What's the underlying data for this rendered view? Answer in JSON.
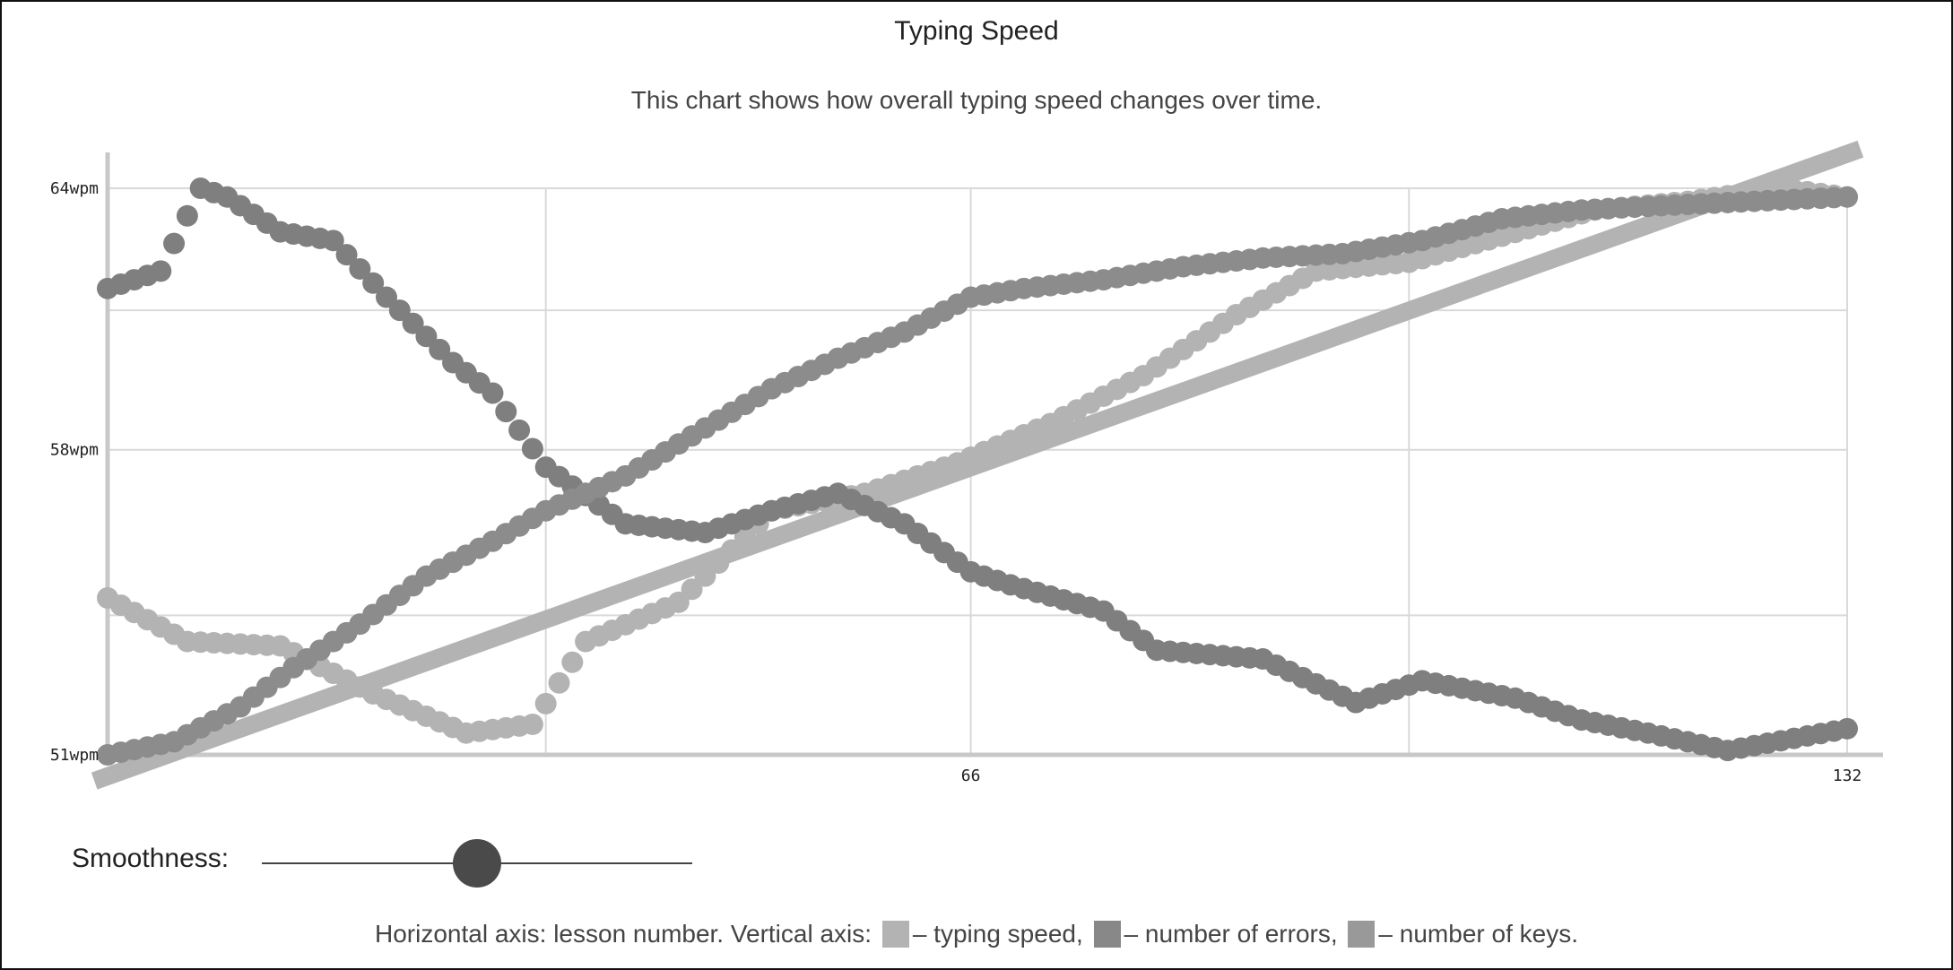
{
  "title": "Typing Speed",
  "subtitle": "This chart shows how overall typing speed changes over time.",
  "smoothness": {
    "label": "Smoothness:",
    "value": 0.5
  },
  "legend": {
    "prefix": "Horizontal axis: lesson number. Vertical axis:",
    "items": [
      {
        "text": "– typing speed,",
        "color": "#b3b3b3"
      },
      {
        "text": "– number of errors,",
        "color": "#888888"
      },
      {
        "text": "– number of keys.",
        "color": "#999999"
      }
    ]
  },
  "chart_data": {
    "type": "scatter",
    "title": "Typing Speed",
    "xlabel": "lesson number",
    "ylabel": "",
    "xlim": [
      1,
      132
    ],
    "ylim": [
      51,
      64
    ],
    "x_ticks": [
      {
        "value": 66,
        "label": "66"
      },
      {
        "value": 132,
        "label": "132"
      }
    ],
    "y_ticks": [
      {
        "value": 51,
        "label": "51wpm"
      },
      {
        "value": 58,
        "label": "58wpm"
      },
      {
        "value": 64,
        "label": "64wpm"
      }
    ],
    "grid": true,
    "series": [
      {
        "name": "typing speed",
        "color": "#b3b3b3",
        "x": [
          1,
          7,
          14,
          21,
          28,
          33,
          37,
          44,
          51,
          58,
          65,
          72,
          79,
          86,
          92,
          99,
          106,
          113,
          120,
          127,
          132
        ],
        "y": [
          54.6,
          53.6,
          53.5,
          52.4,
          51.5,
          51.7,
          53.6,
          54.5,
          56.6,
          57.0,
          57.7,
          58.6,
          59.7,
          61.1,
          62.1,
          62.3,
          62.9,
          63.5,
          63.7,
          64.0,
          63.8
        ]
      },
      {
        "name": "number of errors",
        "color": "#7f7f7f",
        "x": [
          1,
          5,
          8,
          10,
          14,
          18,
          22,
          27,
          30,
          34,
          40,
          46,
          51,
          56,
          61,
          66,
          69,
          76,
          80,
          88,
          95,
          100,
          107,
          112,
          117,
          123,
          132
        ],
        "y": [
          61.7,
          62.1,
          64.0,
          63.8,
          63.0,
          62.8,
          61.5,
          60.0,
          59.3,
          57.6,
          56.3,
          56.1,
          56.6,
          57.0,
          56.3,
          55.2,
          54.9,
          54.3,
          53.4,
          53.2,
          52.2,
          52.7,
          52.3,
          51.8,
          51.5,
          51.1,
          51.6
        ]
      },
      {
        "name": "number of keys",
        "color": "#8c8c8c",
        "x": [
          1,
          6,
          11,
          15,
          20,
          25,
          30,
          34,
          40,
          46,
          51,
          56,
          61,
          66,
          70,
          76,
          82,
          88,
          94,
          100,
          106,
          112,
          118,
          125,
          132
        ],
        "y": [
          51.0,
          51.3,
          52.1,
          53.0,
          54.0,
          55.1,
          55.9,
          56.6,
          57.4,
          58.5,
          59.4,
          60.1,
          60.7,
          61.5,
          61.7,
          61.9,
          62.2,
          62.4,
          62.5,
          62.8,
          63.3,
          63.5,
          63.6,
          63.7,
          63.8
        ]
      }
    ],
    "trend_line": {
      "color": "#b3b3b3",
      "x": [
        0,
        133
      ],
      "y": [
        50.4,
        64.9
      ]
    }
  }
}
